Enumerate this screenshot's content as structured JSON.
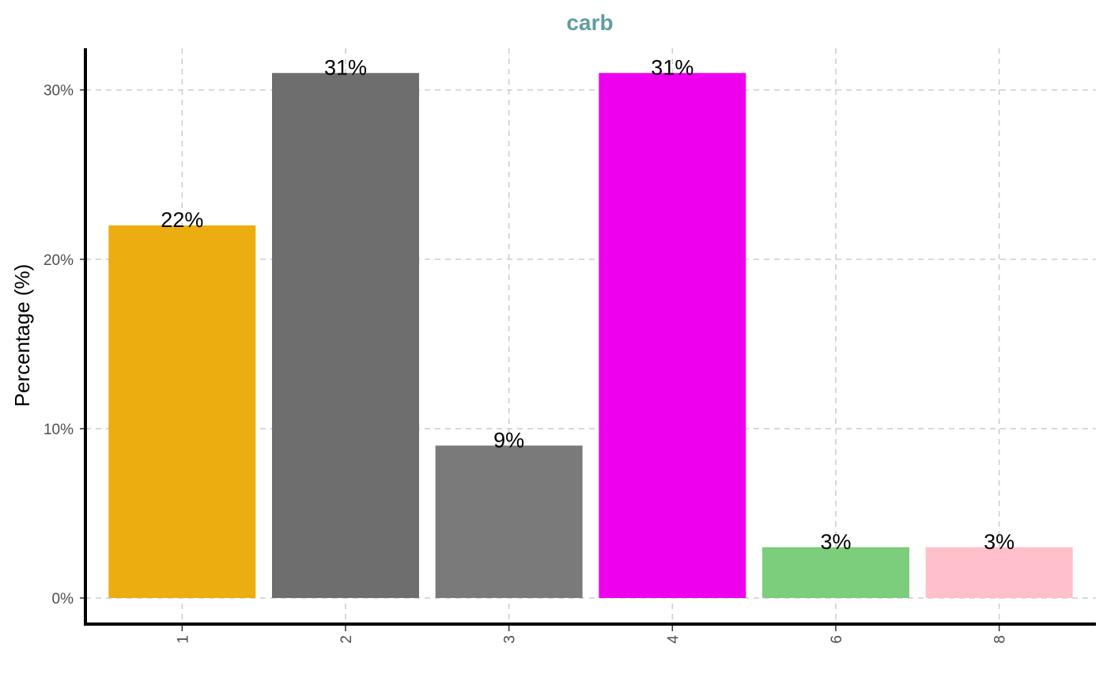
{
  "chart_data": {
    "type": "bar",
    "title": "carb",
    "ylabel": "Percentage (%)",
    "xlabel": "",
    "categories": [
      "1",
      "2",
      "3",
      "4",
      "6",
      "8"
    ],
    "values": [
      22,
      31,
      9,
      31,
      3,
      3
    ],
    "labels": [
      "22%",
      "31%",
      "9%",
      "31%",
      "3%",
      "3%"
    ],
    "colors": [
      "#EBAD0F",
      "#6E6E6E",
      "#7A7A7A",
      "#EE00EE",
      "#7CCD7C",
      "#FFC0CB"
    ],
    "yticks": [
      0,
      10,
      20,
      30
    ],
    "ytick_labels": [
      "0%",
      "10%",
      "20%",
      "30%"
    ],
    "ylim": [
      -1.5,
      32.5
    ],
    "grid": true,
    "title_color": "#5F9EA0"
  }
}
